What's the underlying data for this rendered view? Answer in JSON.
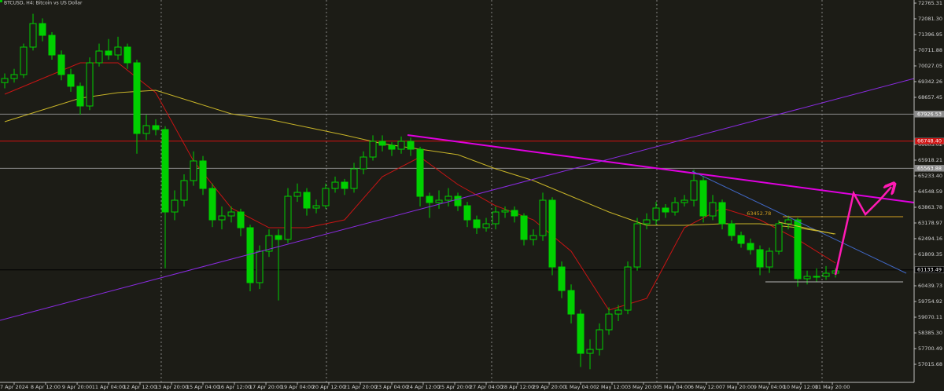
{
  "chart_data": {
    "type": "candlestick",
    "title": "BTCUSD, H4:  Bitcoin vs US Dollar",
    "xlim": [
      -0.5,
      96.33
    ],
    "ylim": [
      56228,
      72902
    ],
    "yticks": [
      72765.31,
      {
        "value": 72081.3,
        "label": "72081.30"
      },
      71396.95,
      70711.88,
      70027.05,
      69342.26,
      68657.45,
      66603.02,
      65918.21,
      {
        "value": 65233.4,
        "label": "65233.40"
      },
      64548.59,
      63863.78,
      63178.97,
      62494.16,
      61809.35,
      60439.73,
      59754.92,
      59070.11,
      {
        "value": 58385.3,
        "label": "58385.30"
      },
      57700.49,
      57015.68
    ],
    "xticks": [
      {
        "value": 1,
        "label": "7 Apr 2024"
      },
      {
        "value": 4.33,
        "label": "8 Apr 12:00"
      },
      {
        "value": 7.67,
        "label": "9 Apr 20:00"
      },
      {
        "value": 11,
        "label": "11 Apr 04:00"
      },
      {
        "value": 14.33,
        "label": "12 Apr 12:00"
      },
      {
        "value": 17.67,
        "label": "13 Apr 20:00"
      },
      {
        "value": 21,
        "label": "15 Apr 04:00"
      },
      {
        "value": 24.33,
        "label": "16 Apr 12:00"
      },
      {
        "value": 27.67,
        "label": "17 Apr 20:00"
      },
      {
        "value": 31,
        "label": "19 Apr 04:00"
      },
      {
        "value": 34.33,
        "label": "20 Apr 12:00"
      },
      {
        "value": 37.67,
        "label": "21 Apr 20:00"
      },
      {
        "value": 41,
        "label": "23 Apr 04:00"
      },
      {
        "value": 44.33,
        "label": "24 Apr 12:00"
      },
      {
        "value": 47.67,
        "label": "25 Apr 20:00"
      },
      {
        "value": 51,
        "label": "27 Apr 04:00"
      },
      {
        "value": 54.33,
        "label": "28 Apr 12:00"
      },
      {
        "value": 57.67,
        "label": "29 Apr 20:00"
      },
      {
        "value": 61,
        "label": "1 May 04:00"
      },
      {
        "value": 64.33,
        "label": "2 May 12:00"
      },
      {
        "value": 67.67,
        "label": "3 May 20:00"
      },
      {
        "value": 71,
        "label": "5 May 04:00"
      },
      {
        "value": 74.33,
        "label": "6 May 12:00"
      },
      {
        "value": 77.67,
        "label": "7 May 20:00"
      },
      {
        "value": 81,
        "label": "9 May 04:00"
      },
      {
        "value": 84.33,
        "label": "10 May 12:00"
      },
      {
        "value": 87.67,
        "label": "11 May 20:00"
      }
    ],
    "separators": [
      16.58,
      34.08,
      51.58,
      69.08,
      86.58
    ],
    "up_color": "#00d000",
    "down_color": "#00d000",
    "candles": [
      [
        69300,
        69700,
        69050,
        69478
      ],
      [
        69478,
        69900,
        69300,
        69649
      ],
      [
        69649,
        71000,
        69500,
        70848
      ],
      [
        70848,
        72300,
        70700,
        71875
      ],
      [
        71875,
        72100,
        71100,
        71361
      ],
      [
        71361,
        71500,
        70300,
        70505
      ],
      [
        70505,
        70700,
        69400,
        69649
      ],
      [
        69649,
        69900,
        68900,
        69138
      ],
      [
        69138,
        69300,
        67900,
        68280
      ],
      [
        68280,
        70400,
        68100,
        70163
      ],
      [
        70163,
        71000,
        70000,
        70676
      ],
      [
        70676,
        71200,
        70300,
        70505
      ],
      [
        70505,
        71300,
        70300,
        70848
      ],
      [
        70848,
        71000,
        69900,
        70163
      ],
      [
        70163,
        70300,
        66200,
        67081
      ],
      [
        67081,
        67900,
        66800,
        67424
      ],
      [
        67424,
        67700,
        67000,
        67252
      ],
      [
        67252,
        67400,
        61200,
        63657
      ],
      [
        63657,
        64600,
        63300,
        64171
      ],
      [
        64171,
        65300,
        63900,
        65027
      ],
      [
        65027,
        66300,
        64800,
        65883
      ],
      [
        65883,
        66100,
        64400,
        64684
      ],
      [
        64684,
        64900,
        63000,
        63315
      ],
      [
        63315,
        63900,
        62900,
        63486
      ],
      [
        63486,
        63900,
        63200,
        63657
      ],
      [
        63657,
        63800,
        62600,
        62972
      ],
      [
        62972,
        63100,
        60200,
        60576
      ],
      [
        60576,
        62200,
        60300,
        61946
      ],
      [
        61946,
        62900,
        61700,
        62630
      ],
      [
        62630,
        62900,
        59800,
        62459
      ],
      [
        62459,
        64700,
        62300,
        64342
      ],
      [
        64342,
        64900,
        64100,
        64513
      ],
      [
        64513,
        64700,
        63500,
        63829
      ],
      [
        63829,
        64200,
        63600,
        63931
      ],
      [
        63931,
        64900,
        63800,
        64684
      ],
      [
        64684,
        65200,
        64500,
        64958
      ],
      [
        64958,
        65100,
        64400,
        64684
      ],
      [
        64684,
        65800,
        64500,
        65540
      ],
      [
        65540,
        66300,
        65300,
        66054
      ],
      [
        66054,
        67000,
        65900,
        66739
      ],
      [
        66739,
        67000,
        66300,
        66568
      ],
      [
        66568,
        66700,
        66100,
        66396
      ],
      [
        66396,
        66950,
        66200,
        66739
      ],
      [
        66739,
        66900,
        66100,
        66396
      ],
      [
        66396,
        66500,
        63900,
        64342
      ],
      [
        64342,
        64500,
        63400,
        64068
      ],
      [
        64068,
        64600,
        63800,
        64171
      ],
      [
        64171,
        64700,
        63900,
        64342
      ],
      [
        64342,
        64500,
        63700,
        63931
      ],
      [
        63931,
        64100,
        63000,
        63315
      ],
      [
        63315,
        63500,
        62700,
        62972
      ],
      [
        62972,
        63400,
        62800,
        63144
      ],
      [
        63144,
        63900,
        62900,
        63657
      ],
      [
        63657,
        63900,
        63400,
        63726
      ],
      [
        63726,
        63900,
        63200,
        63486
      ],
      [
        63486,
        63600,
        62200,
        62459
      ],
      [
        62459,
        62900,
        62200,
        62630
      ],
      [
        62630,
        64500,
        62400,
        64171
      ],
      [
        64171,
        64300,
        60900,
        61260
      ],
      [
        61260,
        61500,
        59900,
        60233
      ],
      [
        60233,
        60500,
        58800,
        59206
      ],
      [
        59206,
        59400,
        56900,
        57494
      ],
      [
        57494,
        58100,
        56800,
        57665
      ],
      [
        57665,
        58800,
        57400,
        58521
      ],
      [
        58521,
        59500,
        58300,
        59206
      ],
      [
        59206,
        59600,
        58900,
        59377
      ],
      [
        59377,
        61500,
        59200,
        61260
      ],
      [
        61260,
        63400,
        61100,
        63144
      ],
      [
        63144,
        63600,
        62900,
        63315
      ],
      [
        63315,
        64100,
        63100,
        63829
      ],
      [
        63829,
        64000,
        63400,
        63657
      ],
      [
        63657,
        64300,
        63500,
        64068
      ],
      [
        64068,
        64400,
        63900,
        64171
      ],
      [
        64171,
        65500,
        63900,
        65027
      ],
      [
        65027,
        65200,
        63200,
        63486
      ],
      [
        63486,
        64400,
        63300,
        64068
      ],
      [
        64068,
        64200,
        62900,
        63144
      ],
      [
        63144,
        63300,
        62400,
        62630
      ],
      [
        62630,
        62800,
        62100,
        62288
      ],
      [
        62288,
        62500,
        61800,
        62014
      ],
      [
        62014,
        62200,
        60900,
        61260
      ],
      [
        61260,
        62100,
        61000,
        61946
      ],
      [
        61946,
        63300,
        61800,
        63144
      ],
      [
        63144,
        63500,
        62900,
        63315
      ],
      [
        63315,
        63400,
        60400,
        60747
      ],
      [
        60747,
        61100,
        60500,
        60850
      ],
      [
        60850,
        61200,
        60600,
        60850
      ],
      [
        60850,
        61300,
        60700,
        60987
      ],
      [
        60987,
        61200,
        60800,
        61090
      ]
    ],
    "moving_averages": [
      {
        "color": "#c81414",
        "x": [
          0,
          4,
          8,
          12,
          16,
          20,
          24,
          28,
          32,
          36,
          40,
          44,
          48,
          52,
          56,
          60,
          64,
          68,
          72,
          76,
          80,
          84,
          88
        ],
        "values": [
          68793,
          69478,
          70163,
          70163,
          68862,
          65883,
          63829,
          62972,
          62972,
          63315,
          65198,
          66054,
          64856,
          63931,
          63315,
          61946,
          59377,
          59890,
          62972,
          63829,
          63315,
          62459,
          61432
        ]
      },
      {
        "color": "#c8b428",
        "x": [
          0,
          4,
          8,
          12,
          16,
          20,
          24,
          28,
          32,
          36,
          40,
          44,
          48,
          52,
          56,
          60,
          64,
          68,
          72,
          76,
          80,
          84,
          88
        ],
        "values": [
          67595,
          68108,
          68622,
          68862,
          68964,
          68451,
          67937,
          67698,
          67355,
          67013,
          66636,
          66396,
          66157,
          65540,
          65027,
          64342,
          63657,
          63075,
          63075,
          63144,
          63144,
          62972,
          62699
        ]
      }
    ],
    "hlines": [
      {
        "value": 67926.53,
        "color": "#8c8c8c"
      },
      {
        "value": 66748.4,
        "label": "66748.40",
        "color": "#d01010"
      },
      {
        "value": 65563.88,
        "color": "#8c8c8c"
      },
      {
        "value": 61133.49,
        "color": "#000000"
      }
    ],
    "segments": [
      {
        "color": "#e000e0",
        "width": 2,
        "x": [
          42.67,
          96.33
        ],
        "values": [
          67013,
          64068
        ]
      },
      {
        "color": "#8a2be2",
        "width": 1,
        "x": [
          -0.5,
          96.33
        ],
        "values": [
          58932,
          69478
        ]
      },
      {
        "color": "#4169c8",
        "width": 1,
        "x": [
          72.83,
          95.5
        ],
        "values": [
          65438,
          60987
        ]
      },
      {
        "color": "#d4c030",
        "width": 1,
        "x": [
          82,
          87.83
        ],
        "values": [
          63212,
          62699
        ]
      },
      {
        "color": "#d4a020",
        "width": 1,
        "x": [
          82.42,
          95.17
        ],
        "values": [
          63452.78,
          63452.78
        ]
      },
      {
        "color": "#b4b4b4",
        "width": 1,
        "x": [
          80.58,
          95.17
        ],
        "values": [
          60610,
          60610
        ]
      }
    ],
    "projection": {
      "color": "#ff1ab4",
      "x": [
        88,
        89.92,
        91.17,
        92.67,
        93.92
      ],
      "values": [
        60918,
        64479,
        63554,
        64171,
        64753
      ]
    },
    "annotations": [
      {
        "text": "63452.78",
        "x": 78.6,
        "value": 63452.78,
        "color": "#d4a020"
      }
    ]
  }
}
